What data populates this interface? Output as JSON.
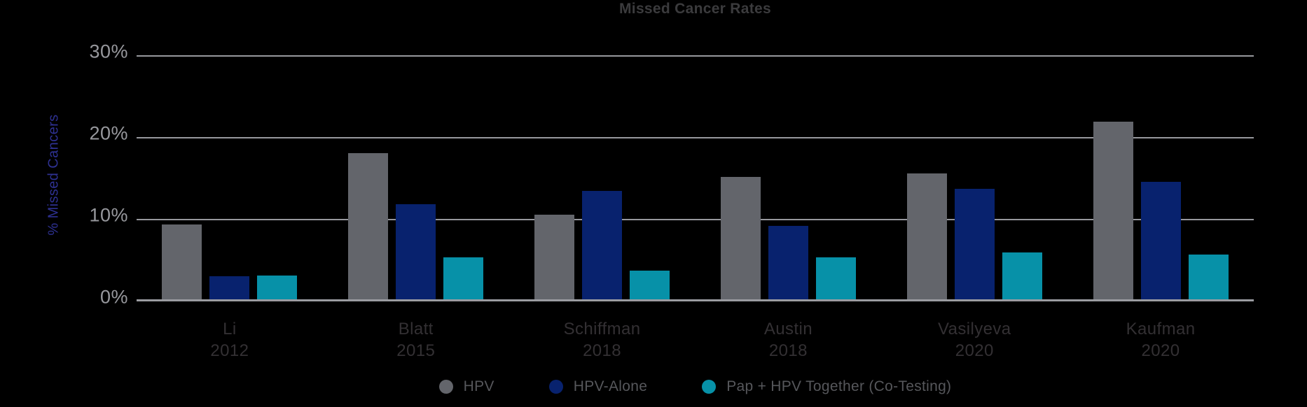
{
  "chart_data": {
    "type": "bar",
    "title": "Missed Cancer Rates",
    "ylabel": "% Missed Cancers",
    "xlabel": "",
    "ylim": [
      0,
      30
    ],
    "yticks": [
      {
        "label": "30%",
        "value": 30
      },
      {
        "label": "20%",
        "value": 20
      },
      {
        "label": "10%",
        "value": 10
      },
      {
        "label": "0%",
        "value": 0
      }
    ],
    "grid": true,
    "legend_position": "bottom",
    "categories": [
      {
        "name": "Li",
        "year": "2012"
      },
      {
        "name": "Blatt",
        "year": "2015"
      },
      {
        "name": "Schiffman",
        "year": "2018"
      },
      {
        "name": "Austin",
        "year": "2018"
      },
      {
        "name": "Vasilyeva",
        "year": "2020"
      },
      {
        "name": "Kaufman",
        "year": "2020"
      }
    ],
    "series": [
      {
        "name": "HPV",
        "color": "#63656b",
        "values": [
          9.4,
          18.1,
          10.6,
          15.2,
          15.6,
          22.0
        ]
      },
      {
        "name": "HPV-Alone",
        "color": "#08226e",
        "values": [
          3.1,
          11.9,
          13.5,
          9.2,
          13.8,
          14.6
        ]
      },
      {
        "name": "Pap + HPV Together (Co-Testing)",
        "color": "#0791a8",
        "values": [
          3.2,
          5.4,
          3.8,
          5.4,
          6.0,
          5.7
        ]
      }
    ],
    "appearance": {
      "background": "#000000",
      "title_color": "#3b3b3d",
      "axis_label_color": "#2e3192",
      "tick_color": "#97989d",
      "gridline_color": "#97989d",
      "category_label_color": "#333033",
      "legend_text_color": "#56575b"
    }
  }
}
